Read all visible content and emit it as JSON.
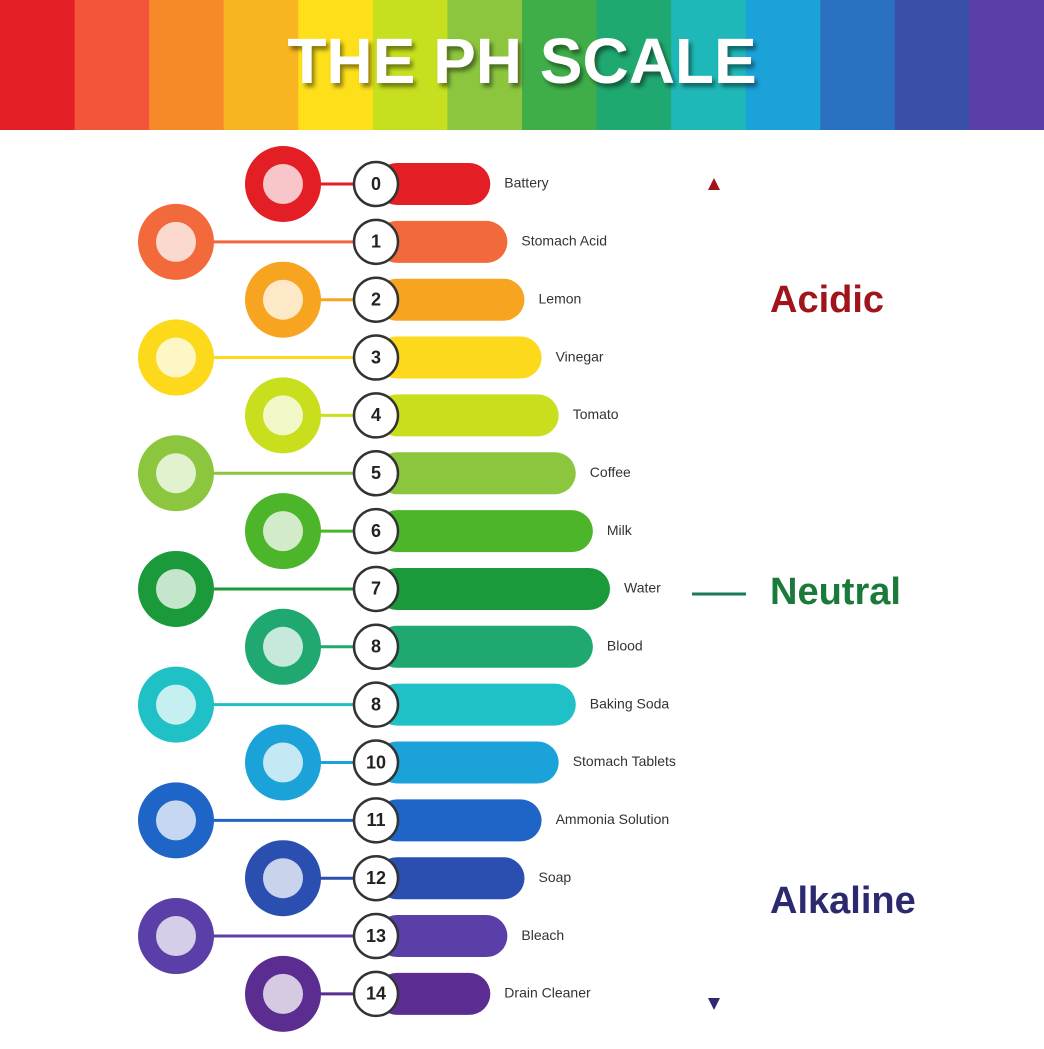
{
  "header": {
    "title": "THE PH SCALE"
  },
  "items": [
    {
      "number": "0",
      "label": "Battery"
    },
    {
      "number": "1",
      "label": "Stomach Acid"
    },
    {
      "number": "2",
      "label": "Lemon"
    },
    {
      "number": "3",
      "label": "Vinegar"
    },
    {
      "number": "4",
      "label": "Tomato"
    },
    {
      "number": "5",
      "label": "Coffee"
    },
    {
      "number": "6",
      "label": "Milk"
    },
    {
      "number": "7",
      "label": "Water"
    },
    {
      "number": "8",
      "label": "Blood"
    },
    {
      "number": "8",
      "label": "Baking Soda"
    },
    {
      "number": "10",
      "label": "Stomach Tablets"
    },
    {
      "number": "11",
      "label": "Ammonia Solution"
    },
    {
      "number": "12",
      "label": "Soap"
    },
    {
      "number": "13",
      "label": "Bleach"
    },
    {
      "number": "14",
      "label": "Drain Cleaner"
    }
  ],
  "scale": {
    "acidic": "Acidic",
    "neutral": "Neutral",
    "alkaline": "Alkaline"
  }
}
